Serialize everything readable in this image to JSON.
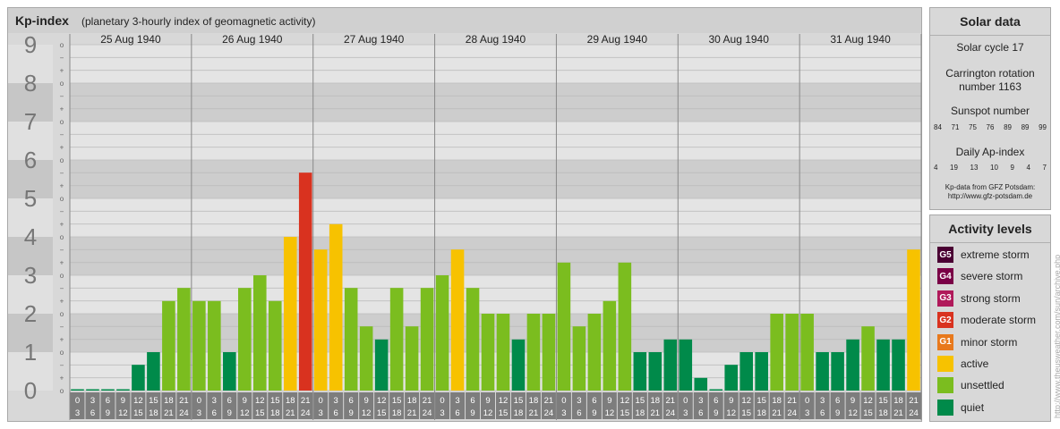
{
  "header": {
    "title": "Kp-index",
    "subtitle": "(planetary 3-hourly index of geomagnetic activity)"
  },
  "chart_data": {
    "type": "bar",
    "title": "Kp-index",
    "subtitle": "(planetary 3-hourly index of geomagnetic activity)",
    "ylim": [
      0,
      9
    ],
    "y_ticks": [
      "0",
      "1",
      "2",
      "3",
      "4",
      "5",
      "6",
      "7",
      "8",
      "9"
    ],
    "minor_tick_labels": [
      "+",
      "o",
      "−"
    ],
    "days": [
      "25 Aug 1940",
      "26 Aug 1940",
      "27 Aug 1940",
      "28 Aug 1940",
      "29 Aug 1940",
      "30 Aug 1940",
      "31 Aug 1940"
    ],
    "interval_start_labels": [
      "0",
      "3",
      "6",
      "9",
      "12",
      "15",
      "18",
      "21"
    ],
    "interval_end_labels": [
      "3",
      "6",
      "9",
      "12",
      "15",
      "18",
      "21",
      "24"
    ],
    "values": [
      [
        0.0,
        0.0,
        0.0,
        0.0,
        0.67,
        1.0,
        2.33,
        2.67
      ],
      [
        2.33,
        2.33,
        1.0,
        2.67,
        3.0,
        2.33,
        4.0,
        5.67
      ],
      [
        3.67,
        4.33,
        2.67,
        1.67,
        1.33,
        2.67,
        1.67,
        2.67
      ],
      [
        3.0,
        3.67,
        2.67,
        2.0,
        2.0,
        1.33,
        2.0,
        2.0
      ],
      [
        3.33,
        1.67,
        2.0,
        2.33,
        3.33,
        1.0,
        1.0,
        1.33
      ],
      [
        1.33,
        0.33,
        0.0,
        0.67,
        1.0,
        1.0,
        2.0,
        2.0
      ],
      [
        2.0,
        1.0,
        1.0,
        1.33,
        1.67,
        1.33,
        1.33,
        3.67
      ]
    ],
    "grid": true,
    "legend": "right-side panel"
  },
  "solar": {
    "title": "Solar data",
    "cycle": "Solar cycle 17",
    "carrington_line1": "Carrington rotation",
    "carrington_line2": "number 1163",
    "sunspot_label": "Sunspot number",
    "sunspot_values": [
      "84",
      "71",
      "75",
      "76",
      "89",
      "89",
      "99"
    ],
    "ap_label": "Daily Ap-index",
    "ap_values": [
      "4",
      "19",
      "13",
      "10",
      "9",
      "4",
      "7"
    ],
    "source_line1": "Kp-data from GFZ Potsdam:",
    "source_line2": "http://www.gfz-potsdam.de"
  },
  "activity": {
    "title": "Activity levels",
    "levels": [
      {
        "code": "G5",
        "label": "extreme storm",
        "color": "#4a0033"
      },
      {
        "code": "G4",
        "label": "severe storm",
        "color": "#7a0046"
      },
      {
        "code": "G3",
        "label": "strong storm",
        "color": "#b0195a"
      },
      {
        "code": "G2",
        "label": "moderate storm",
        "color": "#d9321f"
      },
      {
        "code": "G1",
        "label": "minor storm",
        "color": "#e8791c"
      },
      {
        "code": "",
        "label": "active",
        "color": "#f7c200"
      },
      {
        "code": "",
        "label": "unsettled",
        "color": "#7bbd1f"
      },
      {
        "code": "",
        "label": "quiet",
        "color": "#008a4a"
      }
    ]
  },
  "credit": "http://www.theusweather.com/sun/archive.php"
}
